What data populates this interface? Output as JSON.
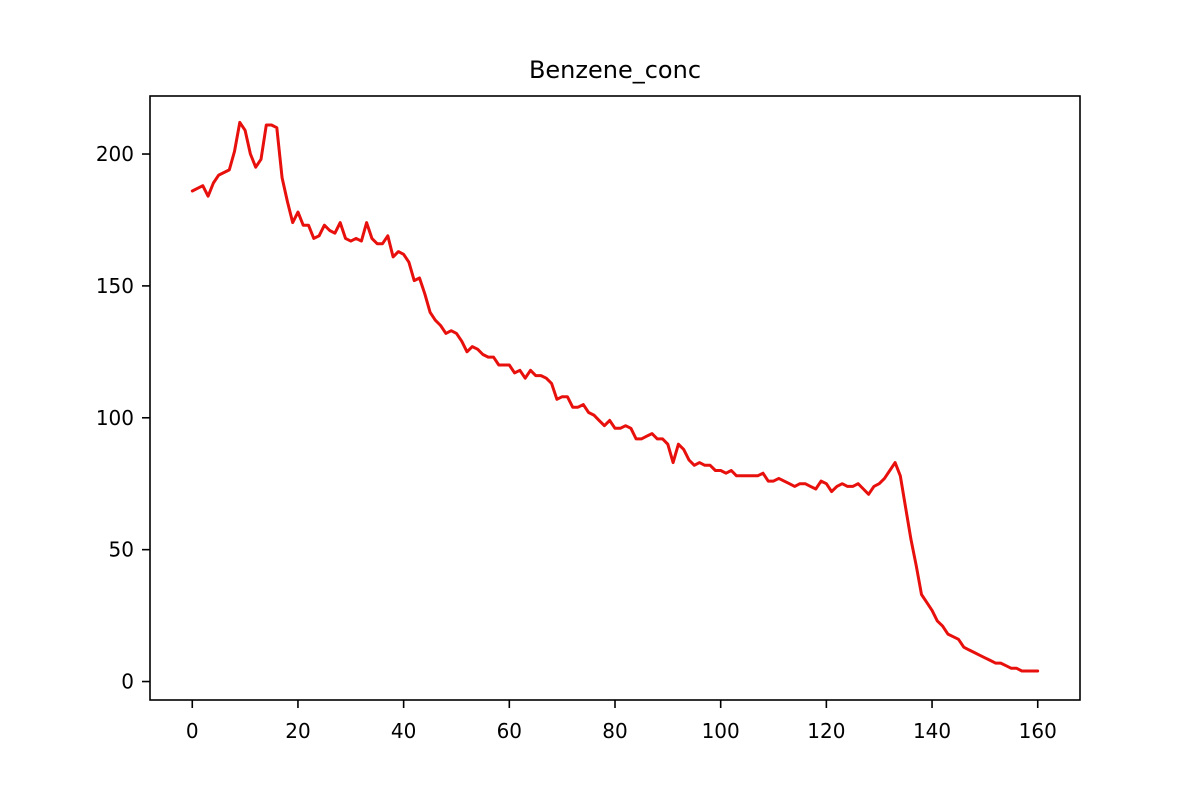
{
  "chart_data": {
    "type": "line",
    "title": "Benzene_conc",
    "xlabel": "",
    "ylabel": "",
    "xlim": [
      -8,
      168
    ],
    "ylim": [
      -7,
      222
    ],
    "xticks": [
      0,
      20,
      40,
      60,
      80,
      100,
      120,
      140,
      160
    ],
    "yticks": [
      0,
      50,
      100,
      150,
      200
    ],
    "grid": false,
    "legend": "none",
    "colors": {
      "series": "#e8100c",
      "axes": "#000000"
    },
    "series": [
      {
        "x": [
          0,
          1,
          2,
          3,
          4,
          5,
          6,
          7,
          8,
          9,
          10,
          11,
          12,
          13,
          14,
          15,
          16,
          17,
          18,
          19,
          20,
          21,
          22,
          23,
          24,
          25,
          26,
          27,
          28,
          29,
          30,
          31,
          32,
          33,
          34,
          35,
          36,
          37,
          38,
          39,
          40,
          41,
          42,
          43,
          44,
          45,
          46,
          47,
          48,
          49,
          50,
          51,
          52,
          53,
          54,
          55,
          56,
          57,
          58,
          59,
          60,
          61,
          62,
          63,
          64,
          65,
          66,
          67,
          68,
          69,
          70,
          71,
          72,
          73,
          74,
          75,
          76,
          77,
          78,
          79,
          80,
          81,
          82,
          83,
          84,
          85,
          86,
          87,
          88,
          89,
          90,
          91,
          92,
          93,
          94,
          95,
          96,
          97,
          98,
          99,
          100,
          101,
          102,
          103,
          104,
          105,
          106,
          107,
          108,
          109,
          110,
          111,
          112,
          113,
          114,
          115,
          116,
          117,
          118,
          119,
          120,
          121,
          122,
          123,
          124,
          125,
          126,
          127,
          128,
          129,
          130,
          131,
          132,
          133,
          134,
          135,
          136,
          137,
          138,
          139,
          140,
          141,
          142,
          143,
          144,
          145,
          146,
          147,
          148,
          149,
          150,
          151,
          152,
          153,
          154,
          155,
          156,
          157,
          158,
          159,
          160
        ],
        "values": [
          186,
          187,
          188,
          184,
          189,
          192,
          193,
          194,
          201,
          212,
          209,
          200,
          195,
          198,
          211,
          211,
          210,
          191,
          182,
          174,
          178,
          173,
          173,
          168,
          169,
          173,
          171,
          170,
          174,
          168,
          167,
          168,
          167,
          174,
          168,
          166,
          166,
          169,
          161,
          163,
          162,
          159,
          152,
          153,
          147,
          140,
          137,
          135,
          132,
          133,
          132,
          129,
          125,
          127,
          126,
          124,
          123,
          123,
          120,
          120,
          120,
          117,
          118,
          115,
          118,
          116,
          116,
          115,
          113,
          107,
          108,
          108,
          104,
          104,
          105,
          102,
          101,
          99,
          97,
          99,
          96,
          96,
          97,
          96,
          92,
          92,
          93,
          94,
          92,
          92,
          90,
          83,
          90,
          88,
          84,
          82,
          83,
          82,
          82,
          80,
          80,
          79,
          80,
          78,
          78,
          78,
          78,
          78,
          79,
          76,
          76,
          77,
          76,
          75,
          74,
          75,
          75,
          74,
          73,
          76,
          75,
          72,
          74,
          75,
          74,
          74,
          75,
          73,
          71,
          74,
          75,
          77,
          80,
          83,
          78,
          66,
          54,
          44,
          33,
          30,
          27,
          23,
          21,
          18,
          17,
          16,
          13,
          12,
          11,
          10,
          9,
          8,
          7,
          7,
          6,
          5,
          5,
          4,
          4,
          4,
          4
        ]
      }
    ]
  }
}
